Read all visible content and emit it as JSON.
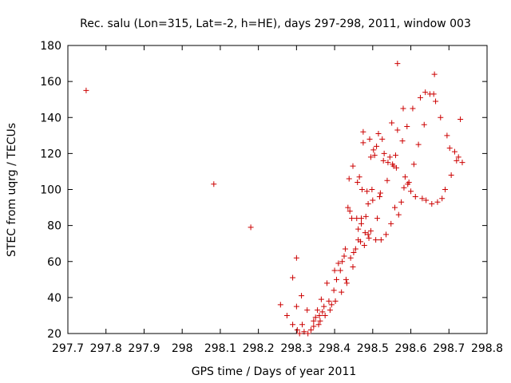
{
  "chart_data": {
    "type": "scatter",
    "title": "Rec. salu (Lon=315, Lat=-2, h=HE), days 297-298, 2011, window 003",
    "xlabel": "GPS time / Days of year 2011",
    "ylabel": "STEC from uqrg / TECUs",
    "xlim": [
      297.7,
      298.8
    ],
    "ylim": [
      20,
      180
    ],
    "x_ticks": [
      "297.7",
      "297.8",
      "297.9",
      "298",
      "298.1",
      "298.2",
      "298.3",
      "298.4",
      "298.5",
      "298.6",
      "298.7",
      "298.8"
    ],
    "y_ticks": [
      "20",
      "40",
      "60",
      "80",
      "100",
      "120",
      "140",
      "160",
      "180"
    ],
    "x_tick_values": [
      297.7,
      297.8,
      297.9,
      298.0,
      298.1,
      298.2,
      298.3,
      298.4,
      298.5,
      298.6,
      298.7,
      298.8
    ],
    "y_tick_values": [
      20,
      40,
      60,
      80,
      100,
      120,
      140,
      160,
      180
    ],
    "grid": false,
    "marker": "plus",
    "marker_color": "#cc0000",
    "points": [
      [
        297.748,
        155
      ],
      [
        298.083,
        103
      ],
      [
        298.18,
        79
      ],
      [
        298.258,
        36
      ],
      [
        298.275,
        30
      ],
      [
        298.29,
        51
      ],
      [
        298.29,
        25
      ],
      [
        298.3,
        62
      ],
      [
        298.3,
        35
      ],
      [
        298.302,
        22
      ],
      [
        298.308,
        20
      ],
      [
        298.313,
        41
      ],
      [
        298.315,
        25
      ],
      [
        298.32,
        21
      ],
      [
        298.328,
        33
      ],
      [
        298.33,
        20
      ],
      [
        298.338,
        22
      ],
      [
        298.345,
        24
      ],
      [
        298.345,
        27
      ],
      [
        298.35,
        29
      ],
      [
        298.355,
        33
      ],
      [
        298.358,
        25
      ],
      [
        298.36,
        30
      ],
      [
        298.362,
        27
      ],
      [
        298.365,
        39
      ],
      [
        298.368,
        32
      ],
      [
        298.372,
        35
      ],
      [
        298.375,
        30
      ],
      [
        298.38,
        48
      ],
      [
        298.385,
        38
      ],
      [
        298.388,
        33
      ],
      [
        298.392,
        36
      ],
      [
        298.398,
        44
      ],
      [
        298.4,
        55
      ],
      [
        298.402,
        38
      ],
      [
        298.405,
        50
      ],
      [
        298.41,
        59
      ],
      [
        298.415,
        55
      ],
      [
        298.418,
        43
      ],
      [
        298.42,
        60
      ],
      [
        298.425,
        63
      ],
      [
        298.428,
        67
      ],
      [
        298.43,
        50
      ],
      [
        298.432,
        48
      ],
      [
        298.435,
        90
      ],
      [
        298.438,
        106
      ],
      [
        298.44,
        88
      ],
      [
        298.442,
        62
      ],
      [
        298.445,
        84
      ],
      [
        298.448,
        113
      ],
      [
        298.448,
        57
      ],
      [
        298.45,
        65
      ],
      [
        298.455,
        67
      ],
      [
        298.458,
        84
      ],
      [
        298.46,
        104
      ],
      [
        298.462,
        78
      ],
      [
        298.462,
        72
      ],
      [
        298.465,
        107
      ],
      [
        298.468,
        71
      ],
      [
        298.47,
        81
      ],
      [
        298.47,
        84
      ],
      [
        298.472,
        100
      ],
      [
        298.475,
        132
      ],
      [
        298.475,
        126
      ],
      [
        298.478,
        69
      ],
      [
        298.48,
        76
      ],
      [
        298.482,
        85
      ],
      [
        298.485,
        99
      ],
      [
        298.488,
        92
      ],
      [
        298.488,
        75
      ],
      [
        298.49,
        73
      ],
      [
        298.492,
        128
      ],
      [
        298.495,
        118
      ],
      [
        298.495,
        77
      ],
      [
        298.498,
        100
      ],
      [
        298.5,
        94
      ],
      [
        298.502,
        122
      ],
      [
        298.505,
        119
      ],
      [
        298.508,
        72
      ],
      [
        298.51,
        124
      ],
      [
        298.512,
        84
      ],
      [
        298.515,
        131
      ],
      [
        298.518,
        96
      ],
      [
        298.52,
        98
      ],
      [
        298.522,
        72
      ],
      [
        298.525,
        128
      ],
      [
        298.528,
        116
      ],
      [
        298.53,
        120
      ],
      [
        298.535,
        75
      ],
      [
        298.538,
        105
      ],
      [
        298.54,
        115
      ],
      [
        298.545,
        118
      ],
      [
        298.548,
        81
      ],
      [
        298.55,
        137
      ],
      [
        298.552,
        114
      ],
      [
        298.555,
        113
      ],
      [
        298.558,
        90
      ],
      [
        298.56,
        119
      ],
      [
        298.562,
        112
      ],
      [
        298.565,
        170
      ],
      [
        298.565,
        133
      ],
      [
        298.568,
        86
      ],
      [
        298.575,
        93
      ],
      [
        298.578,
        127
      ],
      [
        298.58,
        145
      ],
      [
        298.582,
        101
      ],
      [
        298.585,
        107
      ],
      [
        298.59,
        135
      ],
      [
        298.592,
        103
      ],
      [
        298.595,
        104
      ],
      [
        298.6,
        99
      ],
      [
        298.605,
        145
      ],
      [
        298.608,
        114
      ],
      [
        298.612,
        96
      ],
      [
        298.62,
        125
      ],
      [
        298.625,
        151
      ],
      [
        298.63,
        95
      ],
      [
        298.635,
        136
      ],
      [
        298.638,
        154
      ],
      [
        298.64,
        94
      ],
      [
        298.65,
        153
      ],
      [
        298.655,
        92
      ],
      [
        298.66,
        153
      ],
      [
        298.662,
        164
      ],
      [
        298.665,
        149
      ],
      [
        298.67,
        93
      ],
      [
        298.678,
        140
      ],
      [
        298.682,
        95
      ],
      [
        298.69,
        100
      ],
      [
        298.695,
        130
      ],
      [
        298.702,
        123
      ],
      [
        298.706,
        108
      ],
      [
        298.715,
        121
      ],
      [
        298.72,
        116
      ],
      [
        298.725,
        118
      ],
      [
        298.73,
        139
      ],
      [
        298.735,
        115
      ]
    ]
  }
}
